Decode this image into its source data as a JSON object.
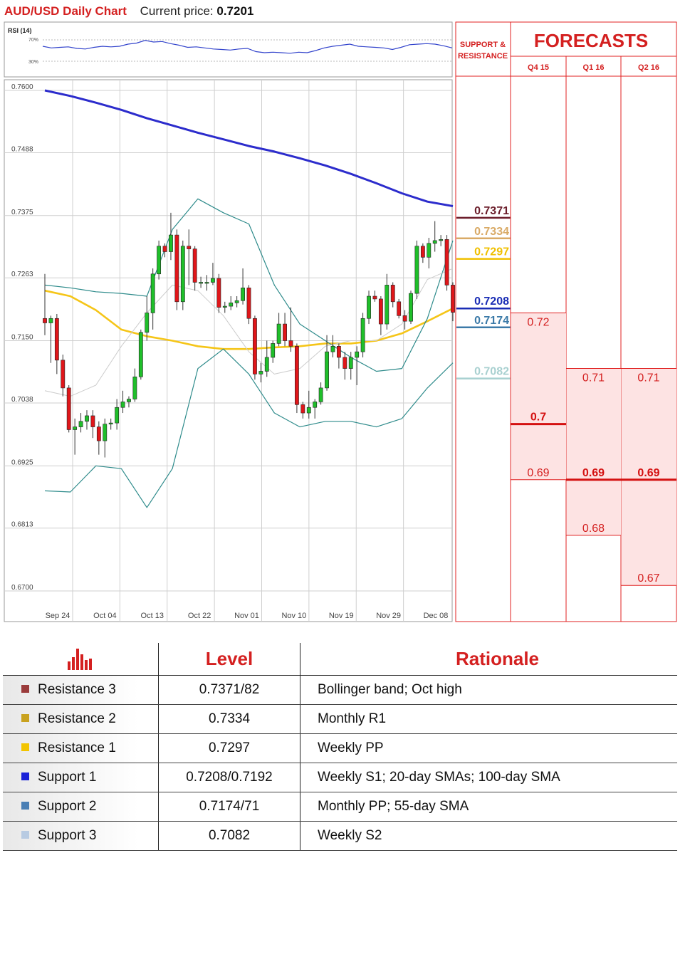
{
  "header": {
    "title": "AUD/USD Daily Chart",
    "price_label": "Current price:",
    "price_value": "0.7201"
  },
  "rsi_panel": {
    "label": "RSI (14)",
    "upper_label": "70%",
    "lower_label": "30%",
    "values": [
      58,
      55,
      56,
      57,
      54,
      53,
      56,
      58,
      57,
      58,
      62,
      64,
      69,
      66,
      67,
      63,
      60,
      56,
      57,
      55,
      53,
      52,
      51,
      53,
      54,
      48,
      46,
      47,
      46,
      45,
      47,
      46,
      50,
      55,
      58,
      60,
      62,
      58,
      57,
      56,
      55,
      52,
      56,
      61,
      62,
      63,
      62,
      59,
      55
    ]
  },
  "chart_data": {
    "type": "candlestick",
    "ylim": [
      0.67,
      0.76
    ],
    "y_ticks": [
      "0.7600",
      "0.7488",
      "0.7375",
      "0.7263",
      "0.7150",
      "0.7038",
      "0.6925",
      "0.6813",
      "0.6700"
    ],
    "x_ticks": [
      "Sep 24",
      "Oct 04",
      "Oct 13",
      "Oct 22",
      "Nov 01",
      "Nov 10",
      "Nov 19",
      "Nov 29",
      "Dec 08"
    ],
    "candles": [
      [
        0.719,
        0.7182,
        0.727,
        0.716
      ],
      [
        0.7182,
        0.719,
        0.7195,
        0.711
      ],
      [
        0.719,
        0.7115,
        0.7198,
        0.709
      ],
      [
        0.7115,
        0.7065,
        0.7125,
        0.705
      ],
      [
        0.7065,
        0.699,
        0.707,
        0.6985
      ],
      [
        0.699,
        0.6995,
        0.701,
        0.6945
      ],
      [
        0.6995,
        0.7005,
        0.702,
        0.6985
      ],
      [
        0.7005,
        0.7015,
        0.7025,
        0.699
      ],
      [
        0.7015,
        0.6995,
        0.7025,
        0.6975
      ],
      [
        0.6995,
        0.697,
        0.7005,
        0.6945
      ],
      [
        0.697,
        0.7,
        0.701,
        0.694
      ],
      [
        0.7,
        0.7002,
        0.701,
        0.699
      ],
      [
        0.7002,
        0.703,
        0.7045,
        0.699
      ],
      [
        0.703,
        0.704,
        0.706,
        0.702
      ],
      [
        0.704,
        0.7045,
        0.705,
        0.703
      ],
      [
        0.7045,
        0.7085,
        0.71,
        0.704
      ],
      [
        0.7085,
        0.7165,
        0.717,
        0.708
      ],
      [
        0.7165,
        0.72,
        0.723,
        0.715
      ],
      [
        0.72,
        0.727,
        0.728,
        0.717
      ],
      [
        0.727,
        0.732,
        0.733,
        0.726
      ],
      [
        0.732,
        0.731,
        0.7325,
        0.73
      ],
      [
        0.731,
        0.734,
        0.738,
        0.7295
      ],
      [
        0.734,
        0.722,
        0.735,
        0.7205
      ],
      [
        0.722,
        0.732,
        0.733,
        0.7205
      ],
      [
        0.732,
        0.7315,
        0.735,
        0.725
      ],
      [
        0.7315,
        0.7255,
        0.732,
        0.724
      ],
      [
        0.7255,
        0.7255,
        0.7265,
        0.7245
      ],
      [
        0.7255,
        0.7255,
        0.7268,
        0.724
      ],
      [
        0.7255,
        0.7262,
        0.729,
        0.725
      ],
      [
        0.7262,
        0.721,
        0.727,
        0.72
      ],
      [
        0.721,
        0.7212,
        0.722,
        0.72
      ],
      [
        0.7212,
        0.7218,
        0.723,
        0.7205
      ],
      [
        0.7218,
        0.7222,
        0.723,
        0.721
      ],
      [
        0.7222,
        0.7245,
        0.728,
        0.7215
      ],
      [
        0.7245,
        0.719,
        0.725,
        0.718
      ],
      [
        0.719,
        0.709,
        0.7195,
        0.708
      ],
      [
        0.709,
        0.7095,
        0.711,
        0.7075
      ],
      [
        0.7095,
        0.712,
        0.715,
        0.7085
      ],
      [
        0.712,
        0.7145,
        0.715,
        0.711
      ],
      [
        0.7145,
        0.718,
        0.72,
        0.714
      ],
      [
        0.718,
        0.715,
        0.72,
        0.714
      ],
      [
        0.715,
        0.714,
        0.721,
        0.713
      ],
      [
        0.714,
        0.7035,
        0.7145,
        0.702
      ],
      [
        0.7035,
        0.702,
        0.704,
        0.701
      ],
      [
        0.702,
        0.703,
        0.706,
        0.701
      ],
      [
        0.703,
        0.704,
        0.7045,
        0.701
      ],
      [
        0.704,
        0.7065,
        0.7075,
        0.7035
      ],
      [
        0.7065,
        0.713,
        0.716,
        0.706
      ],
      [
        0.713,
        0.714,
        0.716,
        0.712
      ],
      [
        0.714,
        0.712,
        0.7145,
        0.71
      ],
      [
        0.712,
        0.71,
        0.713,
        0.708
      ],
      [
        0.71,
        0.712,
        0.713,
        0.708
      ],
      [
        0.712,
        0.713,
        0.714,
        0.707
      ],
      [
        0.713,
        0.719,
        0.72,
        0.712
      ],
      [
        0.719,
        0.723,
        0.724,
        0.718
      ],
      [
        0.723,
        0.7225,
        0.724,
        0.722
      ],
      [
        0.7225,
        0.718,
        0.723,
        0.716
      ],
      [
        0.718,
        0.725,
        0.727,
        0.717
      ],
      [
        0.725,
        0.722,
        0.7255,
        0.721
      ],
      [
        0.722,
        0.7195,
        0.7225,
        0.719
      ],
      [
        0.7195,
        0.7185,
        0.7205,
        0.717
      ],
      [
        0.7185,
        0.7235,
        0.724,
        0.718
      ],
      [
        0.7235,
        0.732,
        0.733,
        0.7225
      ],
      [
        0.732,
        0.73,
        0.7325,
        0.729
      ],
      [
        0.73,
        0.7325,
        0.7335,
        0.728
      ],
      [
        0.7325,
        0.733,
        0.7365,
        0.731
      ],
      [
        0.733,
        0.7332,
        0.734,
        0.732
      ],
      [
        0.7332,
        0.725,
        0.734,
        0.724
      ],
      [
        0.725,
        0.7201,
        0.7255,
        0.7185
      ]
    ],
    "series": [
      {
        "name": "",
        "color": "#2c2ccc",
        "values": [
          0.76,
          0.759,
          0.7578,
          0.7565,
          0.755,
          0.7537,
          0.7524,
          0.7512,
          0.75,
          0.749,
          0.7478,
          0.7465,
          0.745,
          0.7433,
          0.7415,
          0.74,
          0.7392
        ]
      },
      {
        "name": "",
        "color": "#f5c518",
        "values": [
          0.724,
          0.723,
          0.7205,
          0.717,
          0.7158,
          0.715,
          0.714,
          0.7135,
          0.7135,
          0.7138,
          0.714,
          0.7145,
          0.7145,
          0.715,
          0.7163,
          0.7185,
          0.7208
        ]
      },
      {
        "name": "",
        "color": "#2e8b8b",
        "values": [
          0.725,
          0.7245,
          0.7238,
          0.7235,
          0.723,
          0.735,
          0.7405,
          0.738,
          0.736,
          0.725,
          0.718,
          0.715,
          0.712,
          0.7095,
          0.71,
          0.719,
          0.733
        ]
      },
      {
        "name": "",
        "color": "#2e8b8b",
        "values": [
          0.688,
          0.6878,
          0.6925,
          0.692,
          0.685,
          0.692,
          0.71,
          0.7135,
          0.709,
          0.702,
          0.6995,
          0.7005,
          0.7005,
          0.6995,
          0.701,
          0.7065,
          0.711
        ]
      },
      {
        "name": "",
        "color": "#cccccc",
        "values": [
          0.706,
          0.705,
          0.707,
          0.714,
          0.72,
          0.725,
          0.724,
          0.7195,
          0.713,
          0.709,
          0.71,
          0.714,
          0.715,
          0.715,
          0.718,
          0.726,
          0.728
        ]
      }
    ]
  },
  "levels_panel": {
    "header": "SUPPORT & RESISTANCE",
    "items": [
      {
        "value": "0.7371",
        "price": 0.7371,
        "color": "#6b1d2a"
      },
      {
        "value": "0.7334",
        "price": 0.7334,
        "color": "#d9aa66"
      },
      {
        "value": "0.7297",
        "price": 0.7297,
        "color": "#f0c000"
      },
      {
        "value": "0.7208",
        "price": 0.7208,
        "color": "#1a2db5"
      },
      {
        "value": "0.7174",
        "price": 0.7174,
        "color": "#3b7aa8"
      },
      {
        "value": "0.7082",
        "price": 0.7082,
        "color": "#a8d0d0"
      }
    ]
  },
  "forecasts": {
    "title": "FORECASTS",
    "columns": [
      {
        "label": "Q4 15",
        "high": "0.72",
        "high_price": 0.72,
        "mid": "0.7",
        "mid_price": 0.7,
        "low": "0.69",
        "low_price": 0.69
      },
      {
        "label": "Q1 16",
        "high": "0.71",
        "high_price": 0.71,
        "mid": "0.69",
        "mid_price": 0.69,
        "low": "0.68",
        "low_price": 0.68
      },
      {
        "label": "Q2 16",
        "high": "0.71",
        "high_price": 0.71,
        "mid": "0.69",
        "mid_price": 0.69,
        "low": "0.67",
        "low_price": 0.671
      }
    ]
  },
  "table": {
    "headers": [
      "Level",
      "Rationale"
    ],
    "rows": [
      {
        "name": "Resistance 3",
        "level": "0.7371/82",
        "rationale": "Bollinger band; Oct high",
        "color": "#9a3b3b"
      },
      {
        "name": "Resistance 2",
        "level": "0.7334",
        "rationale": "Monthly R1",
        "color": "#c9a21f"
      },
      {
        "name": "Resistance 1",
        "level": "0.7297",
        "rationale": "Weekly PP",
        "color": "#f2c400"
      },
      {
        "name": "Support 1",
        "level": "0.7208/0.7192",
        "rationale": "Weekly S1; 20-day SMAs; 100-day SMA",
        "color": "#1a22d8"
      },
      {
        "name": "Support 2",
        "level": "0.7174/71",
        "rationale": "Monthly PP; 55-day SMA",
        "color": "#4a7fb5"
      },
      {
        "name": "Support 3",
        "level": "0.7082",
        "rationale": "Weekly S2",
        "color": "#b8cbe2"
      }
    ]
  }
}
